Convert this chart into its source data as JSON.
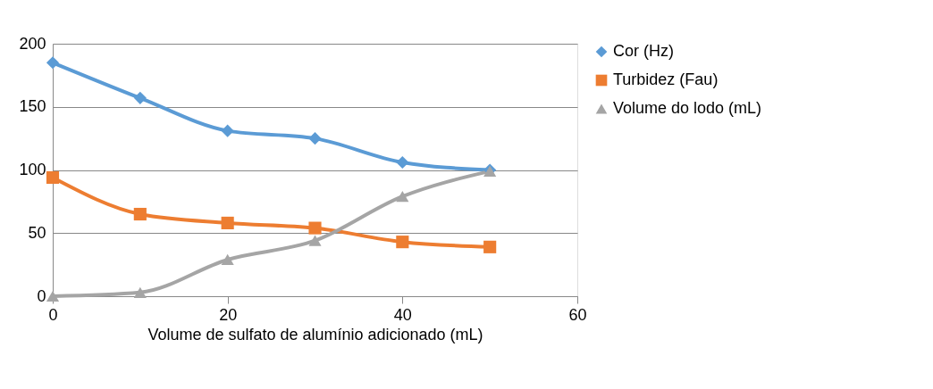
{
  "chart_data": {
    "type": "line",
    "xlabel": "Volume de sulfato de alumínio adicionado (mL)",
    "x": [
      0,
      10,
      20,
      30,
      40,
      50
    ],
    "series": [
      {
        "name": "Cor (Hz)",
        "color": "#5b9bd5",
        "marker": "diamond",
        "values": [
          185,
          157,
          131,
          125,
          106,
          100
        ]
      },
      {
        "name": "Turbidez (Fau)",
        "color": "#ed7d31",
        "marker": "square",
        "values": [
          94,
          65,
          58,
          54,
          43,
          39
        ]
      },
      {
        "name": "Volume do lodo (mL)",
        "color": "#a5a5a5",
        "marker": "triangle",
        "values": [
          0,
          3,
          29,
          44,
          79,
          99
        ]
      }
    ],
    "xlim": [
      0,
      60
    ],
    "xticks": [
      0,
      20,
      40,
      60
    ],
    "ylim": [
      0,
      200
    ],
    "yticks": [
      0,
      50,
      100,
      150,
      200
    ],
    "grid": "y",
    "legend": "right",
    "line_style": "solid"
  }
}
